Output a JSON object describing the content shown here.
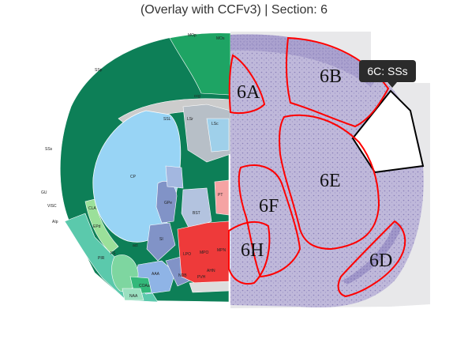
{
  "title": "(Overlay with CCFv3) | Section: 6",
  "tooltip": {
    "text": "6C: SSs"
  },
  "regions": {
    "r6A": "6A",
    "r6B": "6B",
    "r6D": "6D",
    "r6E": "6E",
    "r6F": "6F",
    "r6H": "6H"
  },
  "atlas_labels": {
    "mop": "MOp",
    "mos": "MOs",
    "ssp": "SSp",
    "sss": "SSs",
    "gu": "GU",
    "visc": "VISC",
    "aip": "AIp",
    "cp": "CP",
    "ssl": "SSL",
    "lsc": "LSc",
    "lsr": "LSr",
    "gpe": "GPe",
    "bst": "BST",
    "si": "SI",
    "pir": "PIR",
    "ep": "EPd",
    "cla": "CLA",
    "lpo": "LPO",
    "mpo": "MPO",
    "mpn": "MPN",
    "ahn": "AHN",
    "pvh": "PVH",
    "ma": "MA",
    "fs": "FS",
    "act": "act",
    "stt": "STT",
    "aaa": "AAA",
    "coa": "COAa",
    "naa": "NAA",
    "ndb": "NDB",
    "ot": "PT",
    "sh": "SH",
    "ccg": "ccg",
    "sch": "SCH",
    "opt": "opt"
  },
  "colors": {
    "cortex_dark": "#0d7f57",
    "cortex_mid": "#1ea464",
    "striatum": "#98d4f5",
    "pallidum": "#8193c7",
    "hypothalamus": "#ee3a3a",
    "olfactory": "#5bc9ac",
    "fiber": "#cccccc",
    "boundary": "#ff0000"
  }
}
